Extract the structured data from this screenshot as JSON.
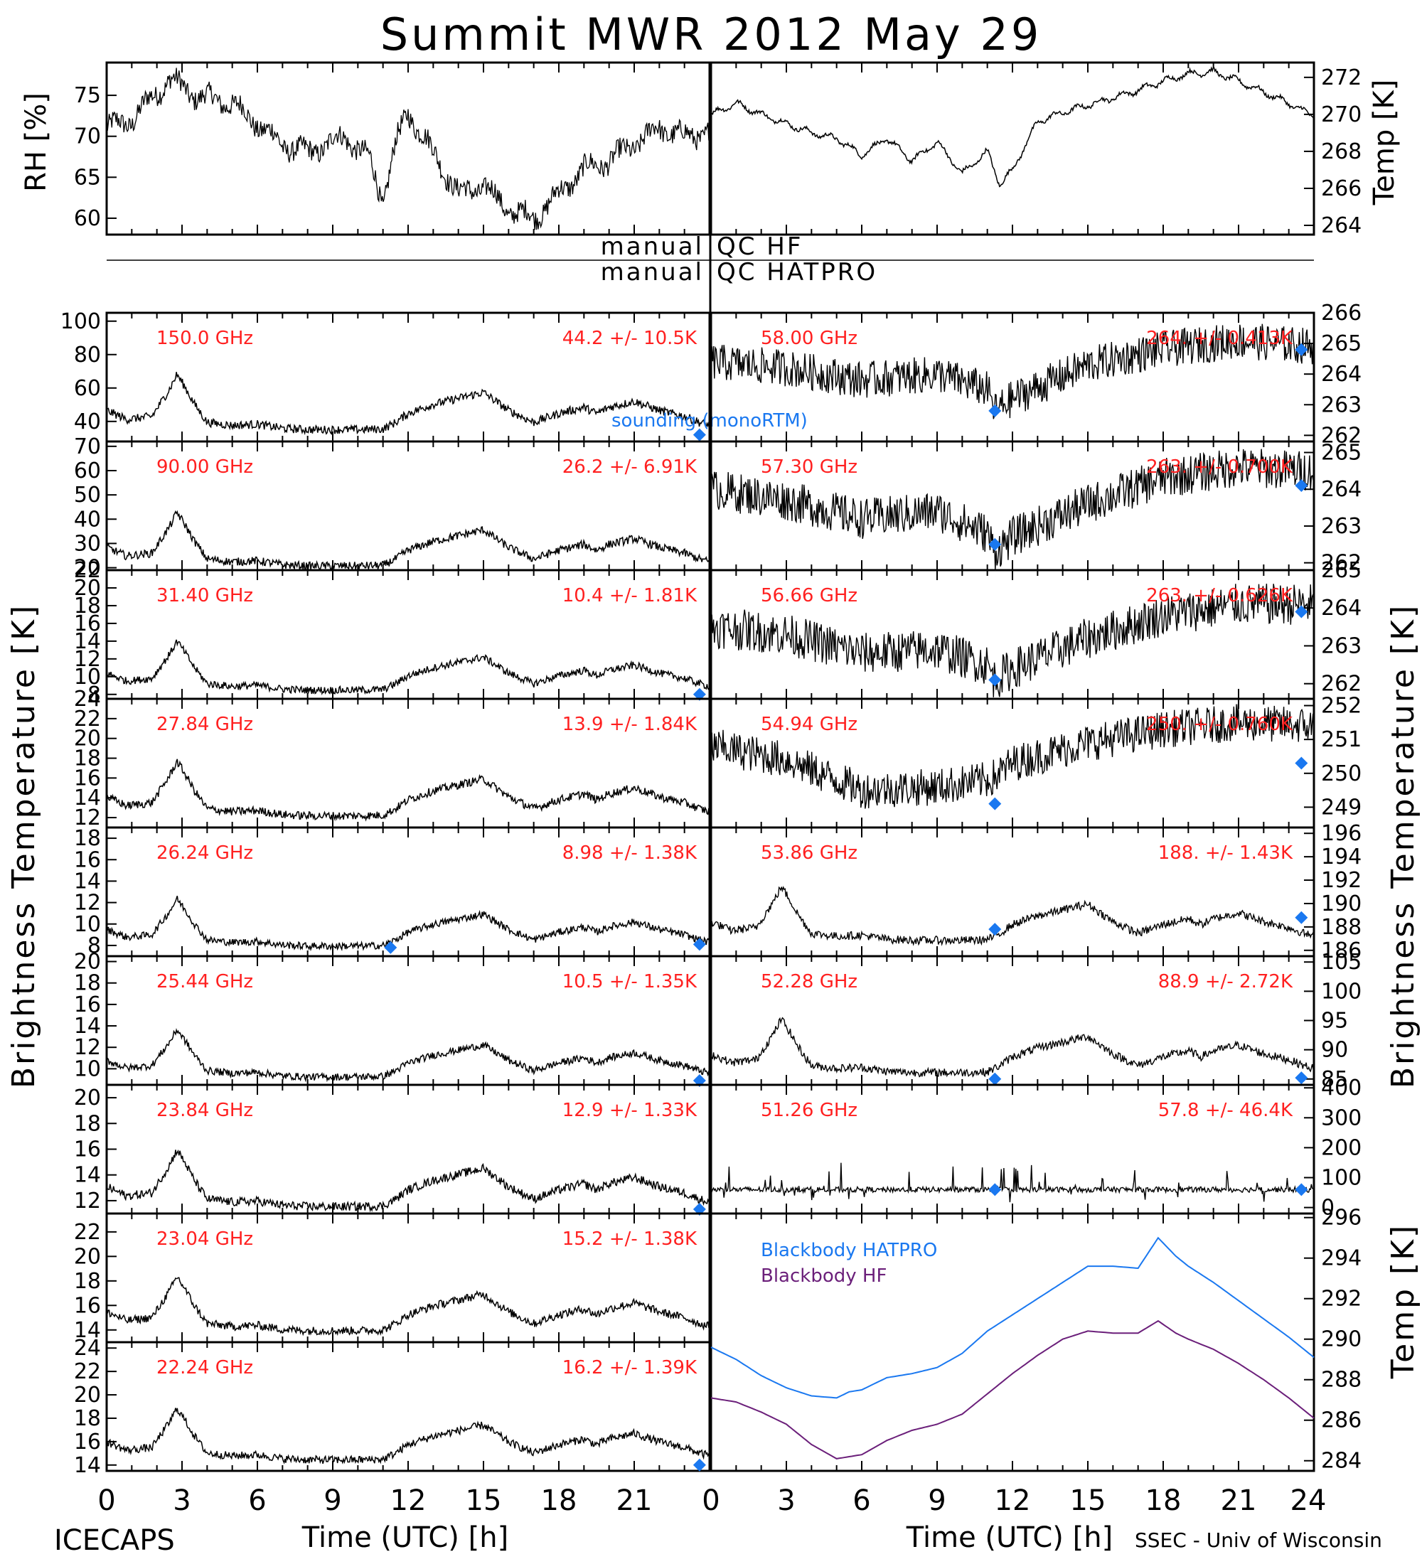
{
  "title": "Summit MWR 2012 May 29",
  "footer_left": "ICECAPS",
  "footer_right": "SSEC - Univ of Wisconsin",
  "qc_labels": {
    "hf_left": "manual",
    "hf_right": "QC HF",
    "hatpro_left": "manual",
    "hatpro_right": "QC HATPRO"
  },
  "axis_labels": {
    "left_bt": "Brightness Temperature [K]",
    "right_bt": "Brightness Temperature [K]",
    "rh": "RH [%]",
    "met_temp": "Temp [K]",
    "bb_temp": "Temp [K]",
    "x_left": "Time (UTC) [h]",
    "x_right": "Time (UTC) [h]"
  },
  "legend": {
    "sounding": "sounding (monoRTM)",
    "bb_hatpro": "Blackbody HATPRO",
    "bb_hf": "Blackbody HF"
  },
  "colors": {
    "label_red": "#ff2020",
    "sounding_blue": "#1a78f0",
    "bb_hatpro": "#1a78f0",
    "bb_hf": "#6b1f7a",
    "data": "#000000"
  },
  "chart_data": {
    "type": "line",
    "x_ticks": [
      0,
      3,
      6,
      9,
      12,
      15,
      18,
      21
    ],
    "x_ticks_right": [
      0,
      3,
      6,
      9,
      12,
      15,
      18,
      21,
      24
    ],
    "xlim": [
      0,
      24
    ],
    "met": {
      "rh": {
        "ylim": [
          58,
          79
        ],
        "ticks": [
          60,
          65,
          70,
          75
        ],
        "x": [
          0,
          1,
          2.5,
          3.5,
          5,
          7,
          8,
          9.5,
          10.5,
          11,
          11.5,
          12,
          13,
          14,
          15,
          16,
          17,
          18,
          19,
          20,
          21,
          22,
          23,
          24
        ],
        "y": [
          71,
          72,
          77,
          75,
          74,
          69,
          68,
          70,
          67,
          62,
          69,
          73,
          68,
          63,
          64,
          61,
          60,
          63,
          66,
          67,
          69,
          71,
          70,
          70.5
        ]
      },
      "temp": {
        "ylim": [
          263.5,
          272.8
        ],
        "ticks": [
          264,
          266,
          268,
          270,
          272
        ],
        "x": [
          0,
          1,
          2,
          3,
          4,
          5,
          6,
          7,
          8,
          9,
          10,
          11,
          11.5,
          12,
          13,
          14,
          15,
          16,
          17,
          18,
          19,
          20,
          21,
          22,
          23,
          24
        ],
        "y": [
          270,
          270.6,
          270,
          269.5,
          269,
          268.7,
          267.8,
          268.7,
          267.5,
          268.5,
          266.8,
          268,
          266.2,
          267,
          269.6,
          270.1,
          270.5,
          270.9,
          271.3,
          271.8,
          272.2,
          272.3,
          271.8,
          271.2,
          270.6,
          269.9
        ]
      }
    },
    "left_panels": [
      {
        "freq": "150.0 GHz",
        "stats": "44.2 +/-  10.5K",
        "ylim": [
          28,
          105
        ],
        "ticks": [
          40,
          60,
          80,
          100
        ],
        "base": 34,
        "amp": 36,
        "sounding": [
          {
            "x": 23.6,
            "y": 32
          }
        ]
      },
      {
        "freq": "90.00 GHz",
        "stats": "26.2 +/-  6.91K",
        "ylim": [
          19,
          72
        ],
        "ticks": [
          20,
          30,
          40,
          50,
          60,
          70
        ],
        "base": 20,
        "amp": 24,
        "sounding": []
      },
      {
        "freq": "31.40 GHz",
        "stats": "10.4 +/- 1.81K",
        "ylim": [
          7.5,
          22
        ],
        "ticks": [
          8,
          10,
          12,
          14,
          16,
          18,
          20,
          22
        ],
        "base": 8.3,
        "amp": 6,
        "sounding": [
          {
            "x": 23.6,
            "y": 8
          }
        ]
      },
      {
        "freq": "27.84 GHz",
        "stats": "13.9 +/- 1.84K",
        "ylim": [
          11,
          24
        ],
        "ticks": [
          12,
          14,
          16,
          18,
          20,
          22,
          24
        ],
        "base": 12,
        "amp": 6,
        "sounding": []
      },
      {
        "freq": "26.24 GHz",
        "stats": "8.98 +/- 1.38K",
        "ylim": [
          7,
          19
        ],
        "ticks": [
          8,
          10,
          12,
          14,
          16,
          18
        ],
        "base": 7.8,
        "amp": 4.8,
        "sounding": [
          {
            "x": 11.3,
            "y": 7.8
          },
          {
            "x": 23.6,
            "y": 8.1
          }
        ]
      },
      {
        "freq": "25.44 GHz",
        "stats": "10.5 +/- 1.35K",
        "ylim": [
          8.5,
          20.5
        ],
        "ticks": [
          10,
          12,
          14,
          16,
          18,
          20
        ],
        "base": 9.1,
        "amp": 4.8,
        "sounding": [
          {
            "x": 23.6,
            "y": 8.8
          }
        ]
      },
      {
        "freq": "23.84 GHz",
        "stats": "12.9 +/- 1.33K",
        "ylim": [
          11,
          21
        ],
        "ticks": [
          12,
          14,
          16,
          18,
          20
        ],
        "base": 11.4,
        "amp": 4.8,
        "sounding": [
          {
            "x": 23.6,
            "y": 11.2
          }
        ]
      },
      {
        "freq": "23.04 GHz",
        "stats": "15.2 +/- 1.38K",
        "ylim": [
          13,
          23.5
        ],
        "ticks": [
          14,
          16,
          18,
          20,
          22
        ],
        "base": 13.8,
        "amp": 4.8,
        "sounding": []
      },
      {
        "freq": "22.24 GHz",
        "stats": "16.2 +/- 1.39K",
        "ylim": [
          13.5,
          24.5
        ],
        "ticks": [
          14,
          16,
          18,
          20,
          22,
          24
        ],
        "base": 14.3,
        "amp": 4.8,
        "sounding": [
          {
            "x": 23.6,
            "y": 14
          }
        ]
      }
    ],
    "right_panels": [
      {
        "freq": "58.00 GHz",
        "stats": "264. +/- 0.413K",
        "ylim": [
          261.8,
          266
        ],
        "ticks": [
          262,
          263,
          264,
          265,
          266
        ],
        "curve": {
          "x": [
            0,
            3,
            6,
            9,
            11,
            11.3,
            12,
            15,
            18,
            21,
            24
          ],
          "y": [
            264.4,
            264.2,
            263.8,
            264,
            263.5,
            262.8,
            263.2,
            264.3,
            264.8,
            265.1,
            264.9
          ]
        },
        "noise": 0.55,
        "sounding": [
          {
            "x": 11.3,
            "y": 262.8
          },
          {
            "x": 23.5,
            "y": 264.8
          }
        ]
      },
      {
        "freq": "57.30 GHz",
        "stats": "263. +/- 0.700K",
        "ylim": [
          261.8,
          265.3
        ],
        "ticks": [
          262,
          263,
          264,
          265
        ],
        "curve": {
          "x": [
            0,
            3,
            6,
            9,
            11,
            11.3,
            12,
            15,
            18,
            21,
            24
          ],
          "y": [
            264,
            263.7,
            263.2,
            263.4,
            262.8,
            262.3,
            262.7,
            263.6,
            264.3,
            264.6,
            264.5
          ]
        },
        "noise": 0.5,
        "sounding": [
          {
            "x": 11.3,
            "y": 262.5
          },
          {
            "x": 23.5,
            "y": 264.1
          }
        ]
      },
      {
        "freq": "56.66 GHz",
        "stats": "263. +/- 0.626K",
        "ylim": [
          261.6,
          265
        ],
        "ticks": [
          262,
          263,
          264,
          265
        ],
        "curve": {
          "x": [
            0,
            3,
            6,
            9,
            11,
            11.3,
            12,
            15,
            18,
            21,
            24
          ],
          "y": [
            263.5,
            263.3,
            262.8,
            262.9,
            262.5,
            262.1,
            262.4,
            263.2,
            263.8,
            264.1,
            264.1
          ]
        },
        "noise": 0.5,
        "sounding": [
          {
            "x": 11.3,
            "y": 262.1
          },
          {
            "x": 23.5,
            "y": 263.9
          }
        ]
      },
      {
        "freq": "54.94 GHz",
        "stats": "250. +/- 0.760K",
        "ylim": [
          248.4,
          252.2
        ],
        "ticks": [
          249,
          250,
          251,
          252
        ],
        "curve": {
          "x": [
            0,
            3,
            6,
            9,
            11,
            11.3,
            12,
            15,
            18,
            21,
            24
          ],
          "y": [
            250.8,
            250.4,
            249.5,
            249.6,
            249.8,
            249.9,
            250.3,
            250.9,
            251.3,
            251.5,
            251.4
          ]
        },
        "noise": 0.5,
        "sounding": [
          {
            "x": 11.3,
            "y": 249.1
          },
          {
            "x": 23.5,
            "y": 250.3
          }
        ]
      },
      {
        "freq": "53.86 GHz",
        "stats": "188. +/- 1.43K",
        "ylim": [
          185.5,
          196.5
        ],
        "ticks": [
          186,
          188,
          190,
          192,
          194,
          196
        ],
        "base": 186.7,
        "amp": 5,
        "sounding": [
          {
            "x": 11.3,
            "y": 187.8
          },
          {
            "x": 23.5,
            "y": 188.8
          }
        ]
      },
      {
        "freq": "52.28 GHz",
        "stats": "88.9 +/- 2.72K",
        "ylim": [
          84,
          106
        ],
        "ticks": [
          85,
          90,
          95,
          100,
          105
        ],
        "base": 85.8,
        "amp": 10,
        "sounding": [
          {
            "x": 11.3,
            "y": 85
          },
          {
            "x": 23.5,
            "y": 85.2
          }
        ]
      },
      {
        "freq": "51.26 GHz",
        "stats": "57.8 +/- 46.4K",
        "ylim": [
          -20,
          410
        ],
        "ticks": [
          0,
          100,
          200,
          300,
          400
        ],
        "flat": 60,
        "sounding": [
          {
            "x": 11.3,
            "y": 60
          },
          {
            "x": 23.5,
            "y": 60
          }
        ]
      }
    ],
    "blackbody": {
      "ylim": [
        283.5,
        296.2
      ],
      "ticks": [
        284,
        286,
        288,
        290,
        292,
        294,
        296
      ],
      "hatpro": {
        "x": [
          0,
          1,
          2,
          3,
          4,
          5,
          5.5,
          6,
          7,
          8,
          9,
          10,
          11,
          12,
          13,
          14,
          15,
          16,
          17,
          17.8,
          18.5,
          19,
          20,
          21,
          22,
          23,
          24
        ],
        "y": [
          289.6,
          289,
          288.2,
          287.6,
          287.2,
          287.1,
          287.4,
          287.5,
          288.1,
          288.3,
          288.6,
          289.3,
          290.4,
          291.2,
          292,
          292.8,
          293.6,
          293.6,
          293.5,
          295,
          294.1,
          293.6,
          292.8,
          291.9,
          291,
          290.1,
          289.1
        ]
      },
      "hf": {
        "x": [
          0,
          1,
          2,
          3,
          4,
          5,
          6,
          7,
          8,
          9,
          10,
          11,
          12,
          13,
          14,
          15,
          16,
          17,
          17.8,
          18.5,
          19,
          20,
          21,
          22,
          23,
          24
        ],
        "y": [
          287.1,
          286.9,
          286.4,
          285.8,
          284.8,
          284.1,
          284.3,
          285,
          285.5,
          285.8,
          286.3,
          287.3,
          288.3,
          289.2,
          290,
          290.4,
          290.3,
          290.3,
          290.9,
          290.3,
          290,
          289.5,
          288.8,
          288,
          287.1,
          286.1
        ]
      }
    }
  }
}
